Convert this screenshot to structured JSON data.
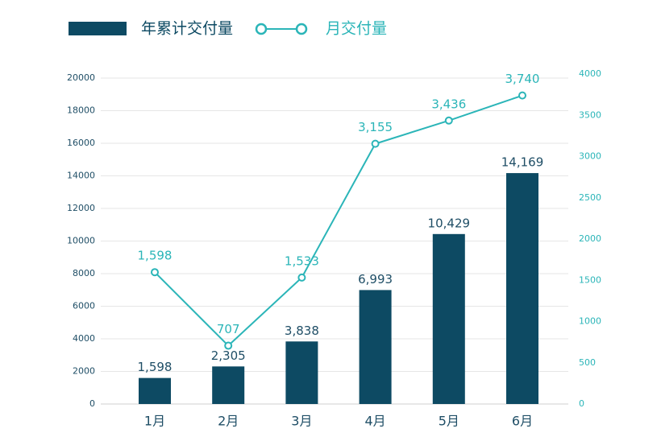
{
  "chart_data": {
    "type": "bar_line",
    "categories": [
      "1月",
      "2月",
      "3月",
      "4月",
      "5月",
      "6月"
    ],
    "series": [
      {
        "name": "年累计交付量",
        "type": "bar",
        "color": "#0d4a63",
        "values": [
          1598,
          2305,
          3838,
          6993,
          10429,
          14169
        ],
        "value_labels": [
          "1,598",
          "2,305",
          "3,838",
          "6,993",
          "10,429",
          "14,169"
        ]
      },
      {
        "name": "月交付量",
        "type": "line",
        "axis": "y2",
        "color": "#2bb5b8",
        "values": [
          1598,
          707,
          1533,
          3155,
          3436,
          3740
        ],
        "value_labels": [
          "1,598",
          "707",
          "1,533",
          "3,155",
          "3,436",
          "3,740"
        ]
      }
    ],
    "ylim": [
      0,
      20000
    ],
    "yticks": [
      0,
      2000,
      4000,
      6000,
      8000,
      10000,
      12000,
      14000,
      16000,
      18000,
      20000
    ],
    "y2lim": [
      0,
      4000
    ],
    "y2ticks": [
      0,
      500,
      1000,
      1500,
      2000,
      2500,
      3000,
      3500,
      4000
    ],
    "grid": true
  }
}
